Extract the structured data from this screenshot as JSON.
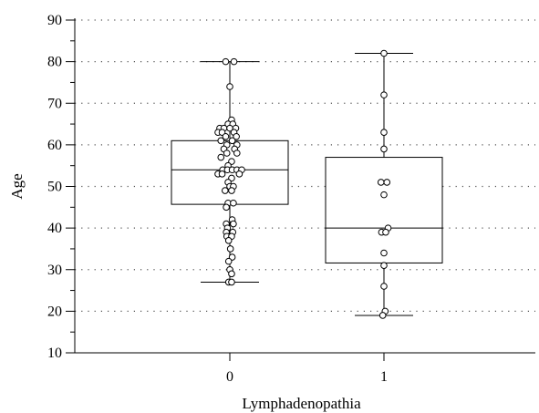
{
  "chart_data": {
    "type": "box",
    "xlabel": "Lymphadenopathia",
    "ylabel": "Age",
    "ylim": [
      10,
      90
    ],
    "yticks": [
      10,
      20,
      30,
      40,
      50,
      60,
      70,
      80,
      90
    ],
    "grid": "horizontal dotted",
    "categories": [
      "0",
      "1"
    ],
    "boxes": [
      {
        "category": "0",
        "whisker_low": 27,
        "q1": 45.7,
        "median": 54,
        "q3": 61,
        "whisker_high": 80
      },
      {
        "category": "1",
        "whisker_low": 19,
        "q1": 31.6,
        "median": 40,
        "q3": 57,
        "whisker_high": 82
      }
    ],
    "points": [
      {
        "category": "0",
        "values": [
          80,
          80,
          74,
          66,
          65,
          65,
          64,
          64,
          64,
          64,
          63,
          63,
          63,
          62,
          62,
          61,
          61,
          60,
          60,
          59,
          59,
          58,
          58,
          57,
          56,
          55,
          54,
          54,
          54,
          54,
          54,
          53,
          53,
          53,
          52,
          51,
          50,
          50,
          49,
          49,
          46,
          46,
          45,
          42,
          41,
          41,
          40,
          39,
          39,
          38,
          38,
          37,
          35,
          33,
          32,
          30,
          29,
          27,
          27
        ],
        "offsets": [
          -0.7,
          0.7,
          0,
          0.3,
          -0.3,
          0.5,
          -1.7,
          -1.0,
          0,
          1.0,
          -2.0,
          -1.3,
          0.7,
          -0.7,
          1.1,
          -1.5,
          0.4,
          -0.5,
          1.2,
          -1.0,
          0.8,
          -0.5,
          1.2,
          -1.5,
          0.3,
          -0.3,
          -1.2,
          -0.4,
          0.4,
          1.2,
          2.0,
          -2.0,
          -1.3,
          1.6,
          0.3,
          -0.3,
          0,
          0.6,
          -0.8,
          0.3,
          -0.3,
          0.6,
          -0.6,
          0.4,
          -0.6,
          0.6,
          -0.4,
          -0.6,
          0.5,
          -0.5,
          0.3,
          -0.2,
          0.1,
          0.4,
          -0.2,
          0,
          0.3,
          -0.2,
          0.3
        ]
      },
      {
        "category": "1",
        "values": [
          82,
          72,
          63,
          59,
          51,
          51,
          48,
          40,
          39,
          39,
          34,
          31,
          26,
          20,
          19
        ],
        "offsets": [
          0,
          0,
          0,
          0,
          -0.5,
          0.5,
          0,
          0.7,
          -0.4,
          0.3,
          0,
          0,
          0,
          0.2,
          -0.2
        ]
      }
    ]
  }
}
